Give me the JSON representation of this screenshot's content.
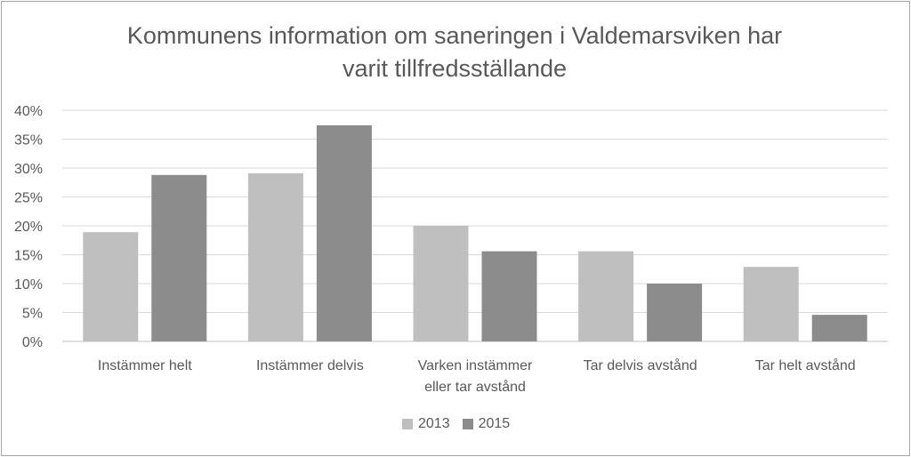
{
  "chart_data": {
    "type": "bar",
    "title": [
      "Kommunens  information om saneringen i Valdemarsviken har",
      "varit tillfredsställande"
    ],
    "categories": [
      [
        "Instämmer helt"
      ],
      [
        "Instämmer delvis"
      ],
      [
        "Varken instämmer",
        "eller tar avstånd"
      ],
      [
        "Tar delvis avstånd"
      ],
      [
        "Tar helt avstånd"
      ]
    ],
    "series": [
      {
        "name": "2013",
        "color": "#bfbfbf",
        "values": [
          18.9,
          29.1,
          20.0,
          15.6,
          12.9
        ]
      },
      {
        "name": "2015",
        "color": "#8c8c8c",
        "values": [
          28.8,
          37.4,
          15.6,
          10.0,
          4.6
        ]
      }
    ],
    "yticks": [
      "0%",
      "5%",
      "10%",
      "15%",
      "20%",
      "25%",
      "30%",
      "35%",
      "40%"
    ],
    "ylim": [
      0,
      40
    ],
    "grid": true,
    "legend_position": "bottom"
  }
}
